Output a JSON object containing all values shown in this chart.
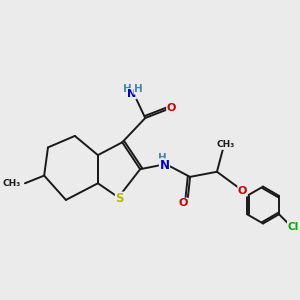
{
  "background_color": "#ebebeb",
  "bond_color": "#1a1a1a",
  "atom_colors": {
    "S": "#b8b800",
    "N": "#0000cc",
    "O": "#cc0000",
    "Cl": "#00aa00",
    "C": "#1a1a1a",
    "H": "#4488aa"
  },
  "figsize": [
    3.0,
    3.0
  ],
  "dpi": 100,
  "lw": 1.4
}
